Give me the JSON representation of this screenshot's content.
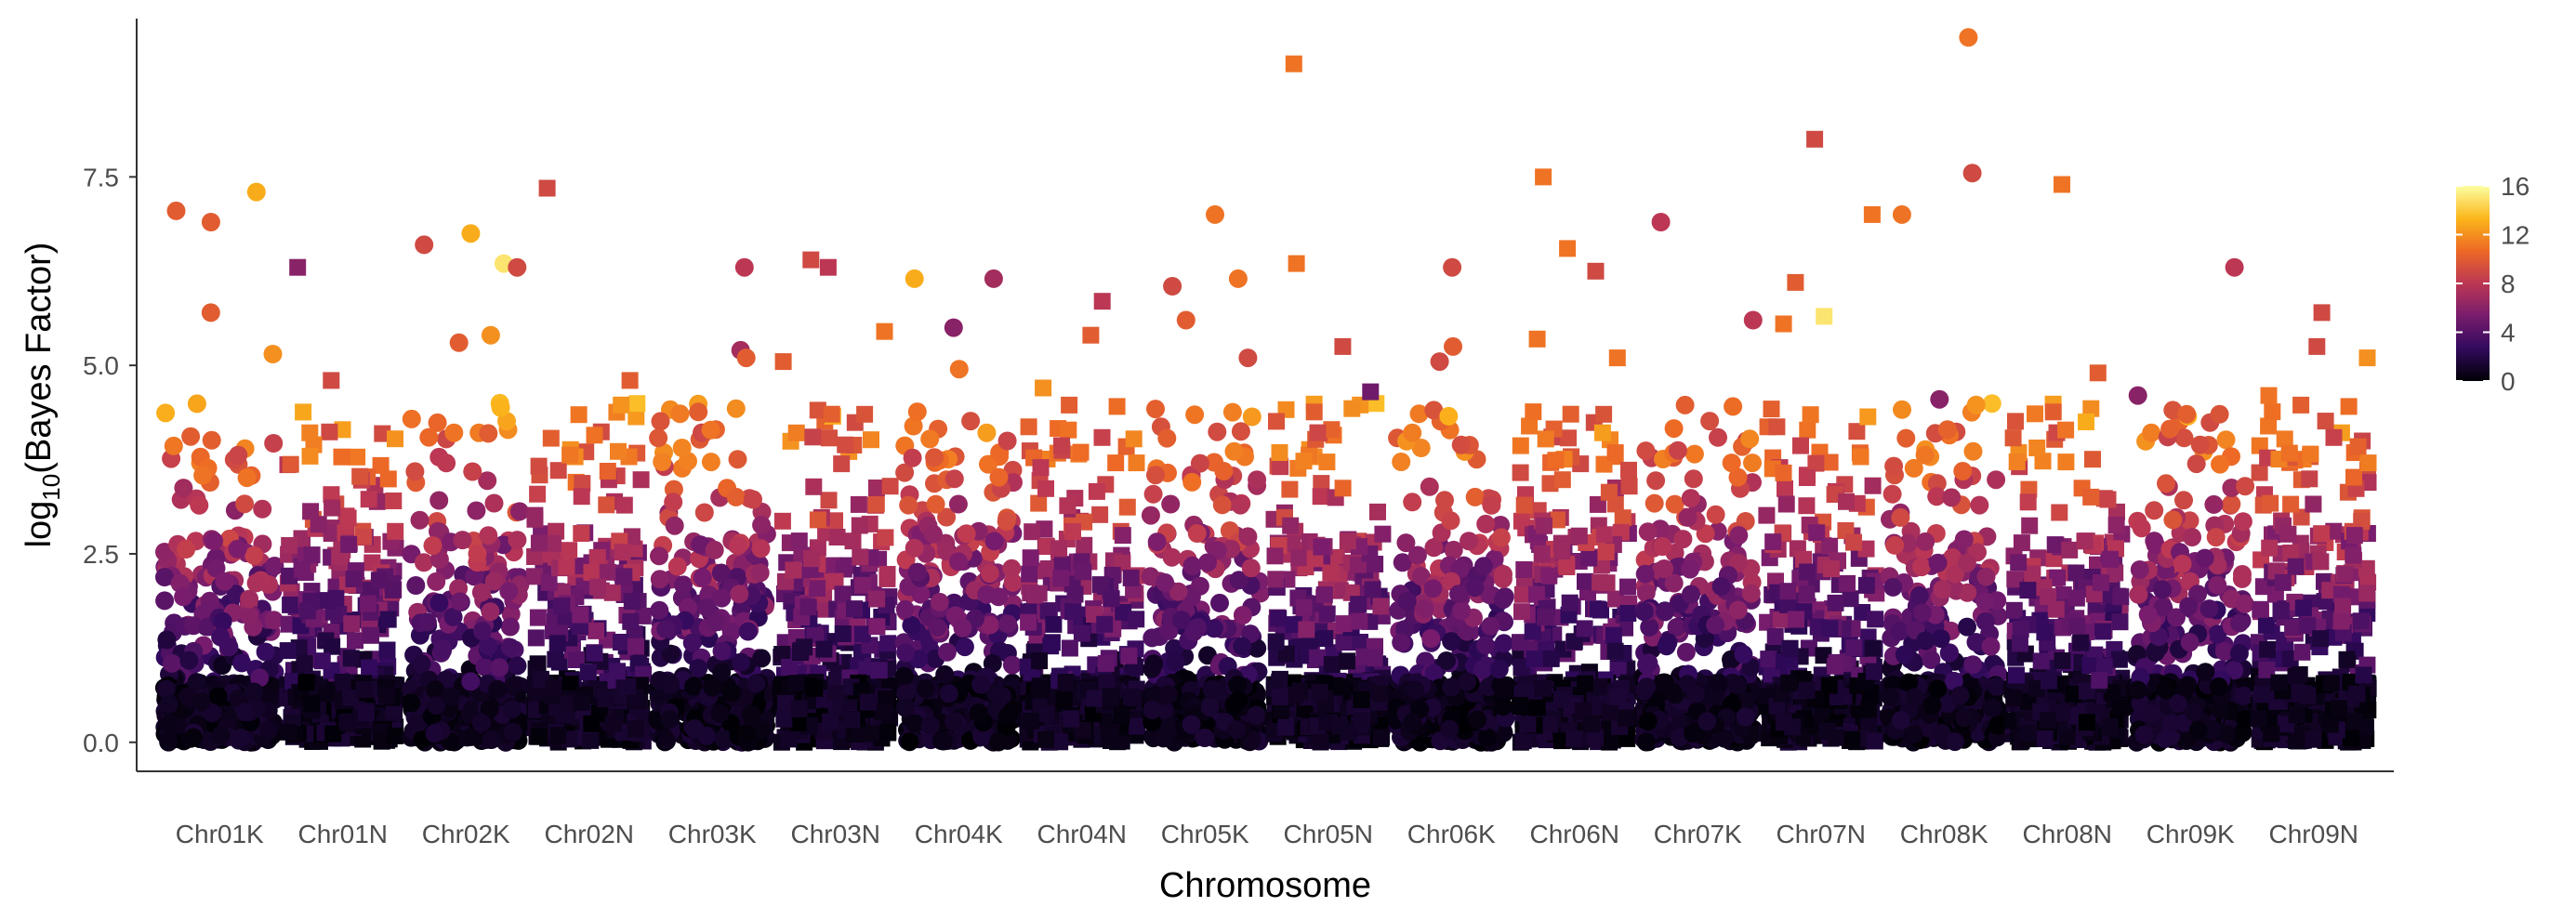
{
  "chart_data": {
    "type": "scatter",
    "xlabel": "Chromosome",
    "ylabel_main": "log",
    "ylabel_sub": "10",
    "ylabel_rest": "(Bayes Factor)",
    "categories": [
      "Chr01K",
      "Chr01N",
      "Chr02K",
      "Chr02N",
      "Chr03K",
      "Chr03N",
      "Chr04K",
      "Chr04N",
      "Chr05K",
      "Chr05N",
      "Chr06K",
      "Chr06N",
      "Chr07K",
      "Chr07N",
      "Chr08K",
      "Chr08N",
      "Chr09K",
      "Chr09N"
    ],
    "ylim": [
      -0.2,
      9.6
    ],
    "yticks": [
      0.0,
      2.5,
      5.0,
      7.5
    ],
    "ytick_labels": [
      "0.0",
      "2.5",
      "5.0",
      "7.5"
    ],
    "grid": false,
    "legend": {
      "placement": "right",
      "type": "colorbar",
      "min": 0,
      "max": 16,
      "ticks": [
        0,
        4,
        8,
        12,
        16
      ],
      "tick_labels": [
        "0",
        "4",
        "8",
        "12",
        "16"
      ],
      "palette": [
        "#000004",
        "#320a5e",
        "#781c6d",
        "#bc3754",
        "#ed6925",
        "#fbb61a",
        "#fcffa4"
      ]
    },
    "marker_shape_by_suffix": {
      "K": "circle",
      "N": "square"
    },
    "highlight_points": [
      {
        "category": "Chr01K",
        "y": 7.3,
        "color_value": 13
      },
      {
        "category": "Chr01K",
        "y": 7.05,
        "color_value": 10
      },
      {
        "category": "Chr01K",
        "y": 6.9,
        "color_value": 10
      },
      {
        "category": "Chr01K",
        "y": 5.7,
        "color_value": 10
      },
      {
        "category": "Chr01K",
        "y": 5.15,
        "color_value": 12
      },
      {
        "category": "Chr01N",
        "y": 6.3,
        "color_value": 6
      },
      {
        "category": "Chr01N",
        "y": 4.8,
        "color_value": 9
      },
      {
        "category": "Chr02K",
        "y": 6.75,
        "color_value": 13
      },
      {
        "category": "Chr02K",
        "y": 6.35,
        "color_value": 15
      },
      {
        "category": "Chr02K",
        "y": 6.6,
        "color_value": 9
      },
      {
        "category": "Chr02K",
        "y": 6.3,
        "color_value": 9
      },
      {
        "category": "Chr02K",
        "y": 5.4,
        "color_value": 12
      },
      {
        "category": "Chr02K",
        "y": 5.3,
        "color_value": 10
      },
      {
        "category": "Chr02N",
        "y": 7.35,
        "color_value": 9
      },
      {
        "category": "Chr02N",
        "y": 4.8,
        "color_value": 10
      },
      {
        "category": "Chr03K",
        "y": 6.3,
        "color_value": 8
      },
      {
        "category": "Chr03K",
        "y": 5.2,
        "color_value": 7
      },
      {
        "category": "Chr03K",
        "y": 5.1,
        "color_value": 10
      },
      {
        "category": "Chr03N",
        "y": 6.4,
        "color_value": 9
      },
      {
        "category": "Chr03N",
        "y": 6.3,
        "color_value": 8
      },
      {
        "category": "Chr03N",
        "y": 5.45,
        "color_value": 11
      },
      {
        "category": "Chr03N",
        "y": 5.05,
        "color_value": 10
      },
      {
        "category": "Chr04K",
        "y": 6.15,
        "color_value": 7
      },
      {
        "category": "Chr04K",
        "y": 5.5,
        "color_value": 6
      },
      {
        "category": "Chr04K",
        "y": 6.15,
        "color_value": 13
      },
      {
        "category": "Chr04K",
        "y": 4.95,
        "color_value": 11
      },
      {
        "category": "Chr04N",
        "y": 4.7,
        "color_value": 12
      },
      {
        "category": "Chr04N",
        "y": 5.85,
        "color_value": 8
      },
      {
        "category": "Chr04N",
        "y": 5.4,
        "color_value": 10
      },
      {
        "category": "Chr05K",
        "y": 6.05,
        "color_value": 9
      },
      {
        "category": "Chr05K",
        "y": 5.1,
        "color_value": 9
      },
      {
        "category": "Chr05K",
        "y": 6.15,
        "color_value": 11
      },
      {
        "category": "Chr05K",
        "y": 7.0,
        "color_value": 11
      },
      {
        "category": "Chr05K",
        "y": 5.6,
        "color_value": 10
      },
      {
        "category": "Chr05N",
        "y": 9.0,
        "color_value": 11
      },
      {
        "category": "Chr05N",
        "y": 6.35,
        "color_value": 11
      },
      {
        "category": "Chr05N",
        "y": 5.25,
        "color_value": 9
      },
      {
        "category": "Chr05N",
        "y": 4.65,
        "color_value": 5
      },
      {
        "category": "Chr06K",
        "y": 6.3,
        "color_value": 9
      },
      {
        "category": "Chr06K",
        "y": 5.25,
        "color_value": 10
      },
      {
        "category": "Chr06K",
        "y": 5.05,
        "color_value": 9
      },
      {
        "category": "Chr06N",
        "y": 6.25,
        "color_value": 9
      },
      {
        "category": "Chr06N",
        "y": 6.55,
        "color_value": 11
      },
      {
        "category": "Chr06N",
        "y": 5.35,
        "color_value": 11
      },
      {
        "category": "Chr06N",
        "y": 7.5,
        "color_value": 11
      },
      {
        "category": "Chr06N",
        "y": 5.1,
        "color_value": 11
      },
      {
        "category": "Chr07K",
        "y": 6.9,
        "color_value": 8
      },
      {
        "category": "Chr07K",
        "y": 5.6,
        "color_value": 8
      },
      {
        "category": "Chr07N",
        "y": 5.65,
        "color_value": 15
      },
      {
        "category": "Chr07N",
        "y": 5.55,
        "color_value": 11
      },
      {
        "category": "Chr07N",
        "y": 8.0,
        "color_value": 9
      },
      {
        "category": "Chr07N",
        "y": 7.0,
        "color_value": 11
      },
      {
        "category": "Chr07N",
        "y": 6.1,
        "color_value": 10
      },
      {
        "category": "Chr08K",
        "y": 9.35,
        "color_value": 11
      },
      {
        "category": "Chr08K",
        "y": 7.0,
        "color_value": 11
      },
      {
        "category": "Chr08K",
        "y": 7.55,
        "color_value": 9
      },
      {
        "category": "Chr08K",
        "y": 4.55,
        "color_value": 6
      },
      {
        "category": "Chr08N",
        "y": 7.4,
        "color_value": 11
      },
      {
        "category": "Chr08N",
        "y": 4.25,
        "color_value": 13
      },
      {
        "category": "Chr08N",
        "y": 4.9,
        "color_value": 10
      },
      {
        "category": "Chr09K",
        "y": 6.3,
        "color_value": 8
      },
      {
        "category": "Chr09K",
        "y": 4.6,
        "color_value": 6
      },
      {
        "category": "Chr09N",
        "y": 5.7,
        "color_value": 9
      },
      {
        "category": "Chr09N",
        "y": 5.25,
        "color_value": 9
      },
      {
        "category": "Chr09N",
        "y": 5.1,
        "color_value": 12
      },
      {
        "category": "Chr09N",
        "y": 4.6,
        "color_value": 11
      }
    ]
  }
}
